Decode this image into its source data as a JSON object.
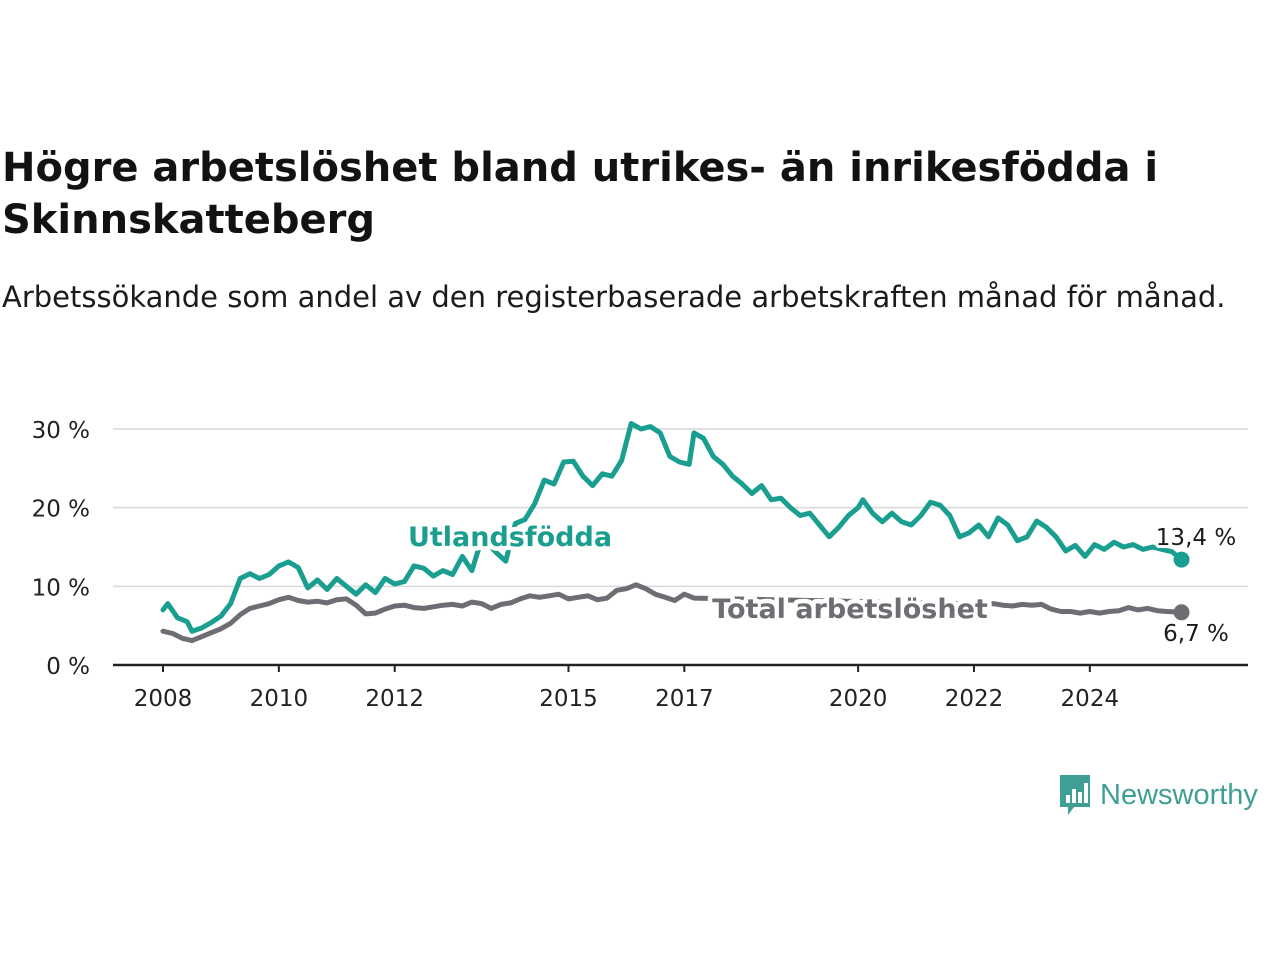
{
  "title": "Högre arbetslöshet bland utrikes- än inrikesfödda i Skinnskatteberg",
  "subtitle": "Arbetssökande som andel av den registerbaserade arbetskraften månad för månad.",
  "brand": {
    "name": "Newsworthy",
    "color": "#3f9f94"
  },
  "chart_data": {
    "type": "line",
    "y_ticks": [
      "0 %",
      "10 %",
      "20 %",
      "30 %"
    ],
    "ylim": [
      0,
      30
    ],
    "x_ticks": [
      "2008",
      "2010",
      "2012",
      "2015",
      "2017",
      "2020",
      "2022",
      "2024"
    ],
    "grid": true,
    "series": [
      {
        "name": "Utlandsfödda",
        "color": "#1a9e90",
        "end_label": "13,4 %",
        "points": [
          [
            "2008-01",
            7.0
          ],
          [
            "2008-02",
            7.8
          ],
          [
            "2008-04",
            6.0
          ],
          [
            "2008-06",
            5.5
          ],
          [
            "2008-07",
            4.3
          ],
          [
            "2008-09",
            4.7
          ],
          [
            "2008-11",
            5.4
          ],
          [
            "2009-01",
            6.2
          ],
          [
            "2009-03",
            7.8
          ],
          [
            "2009-05",
            11.0
          ],
          [
            "2009-07",
            11.6
          ],
          [
            "2009-09",
            11.0
          ],
          [
            "2009-11",
            11.5
          ],
          [
            "2010-01",
            12.6
          ],
          [
            "2010-03",
            13.1
          ],
          [
            "2010-05",
            12.4
          ],
          [
            "2010-07",
            9.8
          ],
          [
            "2010-09",
            10.8
          ],
          [
            "2010-11",
            9.6
          ],
          [
            "2011-01",
            11.0
          ],
          [
            "2011-03",
            10.0
          ],
          [
            "2011-05",
            9.0
          ],
          [
            "2011-07",
            10.2
          ],
          [
            "2011-09",
            9.2
          ],
          [
            "2011-11",
            11.0
          ],
          [
            "2012-01",
            10.3
          ],
          [
            "2012-03",
            10.6
          ],
          [
            "2012-05",
            12.6
          ],
          [
            "2012-07",
            12.3
          ],
          [
            "2012-09",
            11.3
          ],
          [
            "2012-11",
            12.0
          ],
          [
            "2013-01",
            11.5
          ],
          [
            "2013-03",
            13.8
          ],
          [
            "2013-05",
            12.0
          ],
          [
            "2013-07",
            16.0
          ],
          [
            "2013-09",
            15.0
          ],
          [
            "2013-10",
            14.3
          ],
          [
            "2013-12",
            13.2
          ],
          [
            "2014-02",
            18.0
          ],
          [
            "2014-04",
            18.5
          ],
          [
            "2014-06",
            20.5
          ],
          [
            "2014-08",
            23.5
          ],
          [
            "2014-10",
            23.0
          ],
          [
            "2014-12",
            25.8
          ],
          [
            "2015-02",
            25.9
          ],
          [
            "2015-04",
            24.0
          ],
          [
            "2015-06",
            22.8
          ],
          [
            "2015-08",
            24.3
          ],
          [
            "2015-10",
            24.0
          ],
          [
            "2015-12",
            26.0
          ],
          [
            "2016-02",
            30.7
          ],
          [
            "2016-04",
            30.0
          ],
          [
            "2016-06",
            30.3
          ],
          [
            "2016-08",
            29.5
          ],
          [
            "2016-10",
            26.5
          ],
          [
            "2016-12",
            25.8
          ],
          [
            "2017-02",
            25.5
          ],
          [
            "2017-03",
            29.5
          ],
          [
            "2017-05",
            28.8
          ],
          [
            "2017-07",
            26.5
          ],
          [
            "2017-09",
            25.5
          ],
          [
            "2017-11",
            24.0
          ],
          [
            "2018-01",
            23.0
          ],
          [
            "2018-03",
            21.8
          ],
          [
            "2018-05",
            22.8
          ],
          [
            "2018-07",
            21.0
          ],
          [
            "2018-09",
            21.2
          ],
          [
            "2018-11",
            20.0
          ],
          [
            "2019-01",
            19.0
          ],
          [
            "2019-03",
            19.3
          ],
          [
            "2019-05",
            17.8
          ],
          [
            "2019-07",
            16.3
          ],
          [
            "2019-09",
            17.5
          ],
          [
            "2019-11",
            19.0
          ],
          [
            "2020-01",
            20.0
          ],
          [
            "2020-02",
            21.0
          ],
          [
            "2020-04",
            19.3
          ],
          [
            "2020-06",
            18.2
          ],
          [
            "2020-08",
            19.3
          ],
          [
            "2020-10",
            18.2
          ],
          [
            "2020-12",
            17.8
          ],
          [
            "2021-02",
            19.0
          ],
          [
            "2021-04",
            20.7
          ],
          [
            "2021-06",
            20.3
          ],
          [
            "2021-08",
            19.0
          ],
          [
            "2021-10",
            16.3
          ],
          [
            "2021-12",
            16.8
          ],
          [
            "2022-02",
            17.8
          ],
          [
            "2022-04",
            16.3
          ],
          [
            "2022-06",
            18.7
          ],
          [
            "2022-08",
            17.8
          ],
          [
            "2022-10",
            15.8
          ],
          [
            "2022-12",
            16.3
          ],
          [
            "2023-02",
            18.3
          ],
          [
            "2023-04",
            17.5
          ],
          [
            "2023-06",
            16.3
          ],
          [
            "2023-08",
            14.5
          ],
          [
            "2023-10",
            15.2
          ],
          [
            "2023-12",
            13.8
          ],
          [
            "2024-02",
            15.3
          ],
          [
            "2024-04",
            14.7
          ],
          [
            "2024-06",
            15.6
          ],
          [
            "2024-08",
            15.0
          ],
          [
            "2024-10",
            15.3
          ],
          [
            "2024-12",
            14.7
          ],
          [
            "2025-02",
            15.0
          ],
          [
            "2025-04",
            14.7
          ],
          [
            "2025-06",
            14.4
          ],
          [
            "2025-08",
            13.4
          ]
        ]
      },
      {
        "name": "Total arbetslöshet",
        "color": "#6e6d74",
        "end_label": "6,7 %",
        "points": [
          [
            "2008-01",
            4.3
          ],
          [
            "2008-03",
            4.0
          ],
          [
            "2008-05",
            3.4
          ],
          [
            "2008-07",
            3.1
          ],
          [
            "2008-09",
            3.6
          ],
          [
            "2008-11",
            4.1
          ],
          [
            "2009-01",
            4.6
          ],
          [
            "2009-03",
            5.3
          ],
          [
            "2009-05",
            6.4
          ],
          [
            "2009-07",
            7.2
          ],
          [
            "2009-09",
            7.5
          ],
          [
            "2009-11",
            7.8
          ],
          [
            "2010-01",
            8.3
          ],
          [
            "2010-03",
            8.6
          ],
          [
            "2010-05",
            8.2
          ],
          [
            "2010-07",
            8.0
          ],
          [
            "2010-09",
            8.1
          ],
          [
            "2010-11",
            7.9
          ],
          [
            "2011-01",
            8.3
          ],
          [
            "2011-03",
            8.4
          ],
          [
            "2011-05",
            7.6
          ],
          [
            "2011-07",
            6.5
          ],
          [
            "2011-09",
            6.6
          ],
          [
            "2011-11",
            7.1
          ],
          [
            "2012-01",
            7.5
          ],
          [
            "2012-03",
            7.6
          ],
          [
            "2012-05",
            7.3
          ],
          [
            "2012-07",
            7.2
          ],
          [
            "2012-09",
            7.4
          ],
          [
            "2012-11",
            7.6
          ],
          [
            "2013-01",
            7.7
          ],
          [
            "2013-03",
            7.5
          ],
          [
            "2013-05",
            8.0
          ],
          [
            "2013-07",
            7.8
          ],
          [
            "2013-09",
            7.2
          ],
          [
            "2013-11",
            7.7
          ],
          [
            "2014-01",
            7.9
          ],
          [
            "2014-03",
            8.4
          ],
          [
            "2014-05",
            8.8
          ],
          [
            "2014-07",
            8.6
          ],
          [
            "2014-09",
            8.8
          ],
          [
            "2014-11",
            9.0
          ],
          [
            "2015-01",
            8.4
          ],
          [
            "2015-03",
            8.6
          ],
          [
            "2015-05",
            8.8
          ],
          [
            "2015-07",
            8.3
          ],
          [
            "2015-09",
            8.5
          ],
          [
            "2015-11",
            9.5
          ],
          [
            "2016-01",
            9.7
          ],
          [
            "2016-03",
            10.2
          ],
          [
            "2016-05",
            9.7
          ],
          [
            "2016-07",
            9.0
          ],
          [
            "2016-09",
            8.6
          ],
          [
            "2016-11",
            8.2
          ],
          [
            "2017-01",
            9.0
          ],
          [
            "2017-03",
            8.5
          ],
          [
            "2021-11",
            7.8
          ],
          [
            "2022-01",
            7.7
          ],
          [
            "2022-03",
            7.6
          ],
          [
            "2022-05",
            7.8
          ],
          [
            "2022-07",
            7.6
          ],
          [
            "2022-09",
            7.5
          ],
          [
            "2022-11",
            7.7
          ],
          [
            "2023-01",
            7.6
          ],
          [
            "2023-03",
            7.7
          ],
          [
            "2023-05",
            7.1
          ],
          [
            "2023-07",
            6.8
          ],
          [
            "2023-09",
            6.8
          ],
          [
            "2023-11",
            6.6
          ],
          [
            "2024-01",
            6.8
          ],
          [
            "2024-03",
            6.6
          ],
          [
            "2024-05",
            6.8
          ],
          [
            "2024-07",
            6.9
          ],
          [
            "2024-09",
            7.3
          ],
          [
            "2024-11",
            7.0
          ],
          [
            "2025-01",
            7.2
          ],
          [
            "2025-03",
            6.9
          ],
          [
            "2025-05",
            6.8
          ],
          [
            "2025-08",
            6.7
          ]
        ]
      }
    ]
  }
}
